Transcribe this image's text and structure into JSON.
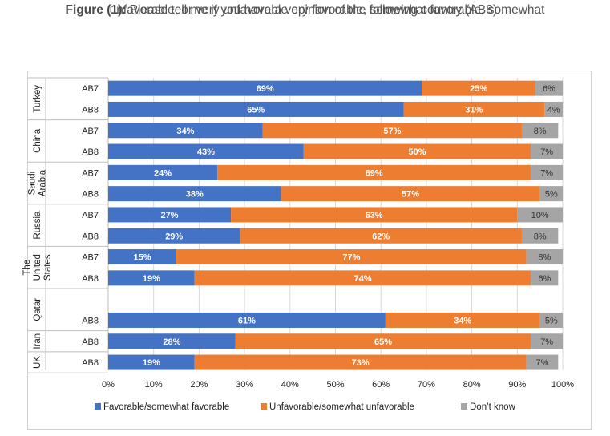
{
  "figure": {
    "label": "Figure (1):",
    "question_line1": "Please tell me if you have a very favorable, somewhat favorable, somewhat",
    "question_line2": "unfavorable, or very unfavorable opinion of the following country (AB8):"
  },
  "colors": {
    "favorable": "#4472C4",
    "unfavorable": "#ED7D31",
    "dont_know": "#A5A5A5",
    "text": "#333333"
  },
  "chart_data": {
    "type": "bar",
    "orientation": "horizontal",
    "stacked": "percent",
    "xlim": [
      0,
      100
    ],
    "x_ticks": [
      "0%",
      "10%",
      "20%",
      "30%",
      "40%",
      "50%",
      "60%",
      "70%",
      "80%",
      "90%",
      "100%"
    ],
    "legend_position": "bottom",
    "series": [
      {
        "name": "Favorable/somewhat favorable",
        "color": "#4472C4"
      },
      {
        "name": "Unfavorable/somewhat unfavorable",
        "color": "#ED7D31"
      },
      {
        "name": "Don’t know",
        "color": "#A5A5A5"
      }
    ],
    "groups": [
      {
        "country": [
          "Turkey"
        ],
        "rows": [
          {
            "label": "AB7",
            "values": [
              69,
              25,
              6
            ]
          },
          {
            "label": "AB8",
            "values": [
              65,
              31,
              4
            ]
          }
        ]
      },
      {
        "country": [
          "China"
        ],
        "rows": [
          {
            "label": "AB7",
            "values": [
              34,
              57,
              8
            ]
          },
          {
            "label": "AB8",
            "values": [
              43,
              50,
              7
            ]
          }
        ]
      },
      {
        "country": [
          "Saudi",
          "Arabia"
        ],
        "rows": [
          {
            "label": "AB7",
            "values": [
              24,
              69,
              7
            ]
          },
          {
            "label": "AB8",
            "values": [
              38,
              57,
              5
            ]
          }
        ]
      },
      {
        "country": [
          "Russia"
        ],
        "rows": [
          {
            "label": "AB7",
            "values": [
              27,
              63,
              10
            ]
          },
          {
            "label": "AB8",
            "values": [
              29,
              62,
              8
            ]
          }
        ]
      },
      {
        "country": [
          "The",
          "United",
          "States"
        ],
        "rows": [
          {
            "label": "AB7",
            "values": [
              15,
              77,
              8
            ]
          },
          {
            "label": "AB8",
            "values": [
              19,
              74,
              6
            ]
          }
        ]
      },
      {
        "country": [
          "Qatar"
        ],
        "rows": [
          {
            "label": "",
            "values": null
          },
          {
            "label": "AB8",
            "values": [
              61,
              34,
              5
            ]
          }
        ]
      },
      {
        "country": [
          "Iran"
        ],
        "rows": [
          {
            "label": "AB8",
            "values": [
              28,
              65,
              7
            ]
          }
        ]
      },
      {
        "country": [
          "UK"
        ],
        "rows": [
          {
            "label": "AB8",
            "values": [
              19,
              73,
              7
            ]
          }
        ]
      }
    ]
  }
}
